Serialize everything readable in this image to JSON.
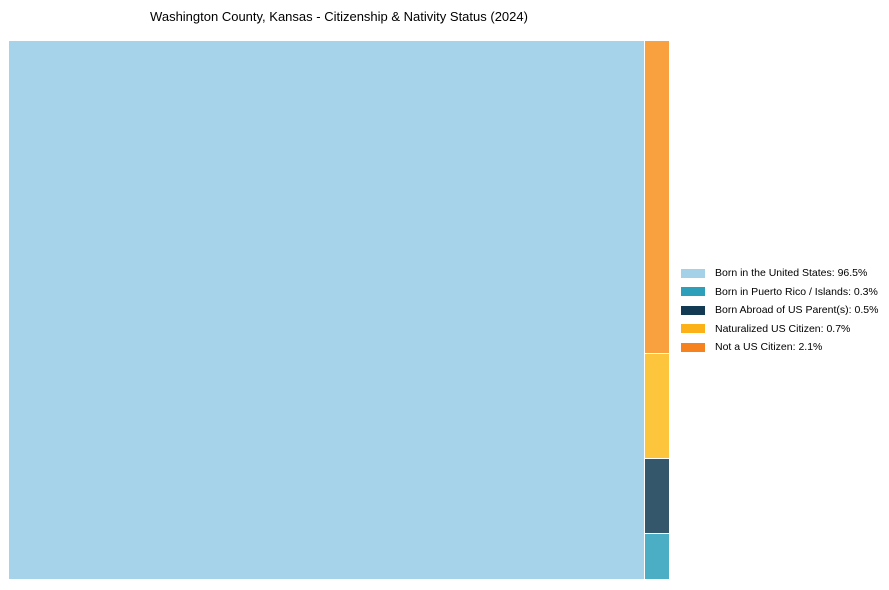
{
  "page": {
    "background": "#ffffff"
  },
  "chart_data": {
    "type": "treemap",
    "title": "Washington County, Kansas - Citizenship & Nativity Status (2024)",
    "categories": [
      "Born in the United States",
      "Born in Puerto Rico / Islands",
      "Born Abroad of US Parent(s)",
      "Naturalized US Citizen",
      "Not a US Citizen"
    ],
    "values": [
      96.5,
      0.3,
      0.5,
      0.7,
      2.1
    ],
    "unit": "%",
    "legend_labels": [
      "Born in the United States: 96.5%",
      "Born in Puerto Rico / Islands: 0.3%",
      "Born Abroad of US Parent(s): 0.5%",
      "Naturalized US Citizen: 0.7%",
      "Not a US Citizen: 2.1%"
    ],
    "colors": [
      "#A5D1E8",
      "#2D9FBB",
      "#123A52",
      "#FBB117",
      "#F5821E"
    ],
    "fills": [
      "#A7D3EA",
      "#4CAEC5",
      "#35576C",
      "#FDC53C",
      "#F9A03F"
    ],
    "legend_position": "center-right",
    "strip_order_indices": [
      4,
      3,
      2,
      1
    ],
    "layout_order_top_to_bottom": [
      "Not a US Citizen",
      "Naturalized US Citizen",
      "Born Abroad of US Parent(s)",
      "Born in Puerto Rico / Islands"
    ],
    "grid": false,
    "axes": false
  }
}
